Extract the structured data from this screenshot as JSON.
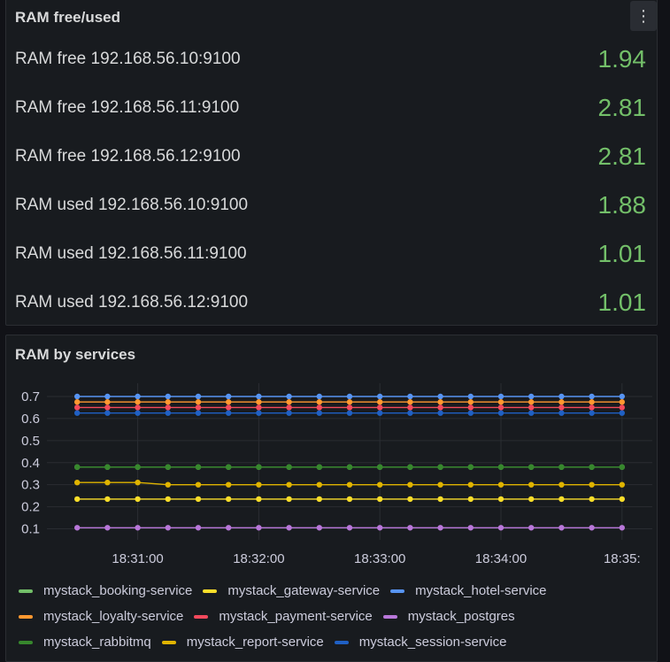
{
  "ram_panel": {
    "title": "RAM free/used",
    "menu_icon": "⋮",
    "value_color": "#73bf69",
    "rows": [
      {
        "label": "RAM free 192.168.56.10:9100",
        "value": "1.94"
      },
      {
        "label": "RAM free 192.168.56.11:9100",
        "value": "2.81"
      },
      {
        "label": "RAM free 192.168.56.12:9100",
        "value": "2.81"
      },
      {
        "label": "RAM used 192.168.56.10:9100",
        "value": "1.88"
      },
      {
        "label": "RAM used 192.168.56.11:9100",
        "value": "1.01"
      },
      {
        "label": "RAM used 192.168.56.12:9100",
        "value": "1.01"
      }
    ]
  },
  "services_panel": {
    "title": "RAM by services",
    "legend": [
      [
        "mystack_booking-service",
        "mystack_gateway-service",
        "mystack_hotel-service"
      ],
      [
        "mystack_loyalty-service",
        "mystack_payment-service",
        "mystack_postgres"
      ],
      [
        "mystack_rabbitmq",
        "mystack_report-service",
        "mystack_session-service"
      ]
    ]
  },
  "chart_data": {
    "type": "line",
    "title": "RAM by services",
    "xlabel": "",
    "ylabel": "",
    "x_tick_labels": [
      "18:31:00",
      "18:32:00",
      "18:33:00",
      "18:34:00",
      "18:35:"
    ],
    "y_tick_labels": [
      "0.1",
      "0.2",
      "0.3",
      "0.4",
      "0.5",
      "0.6",
      "0.7"
    ],
    "xlim": [
      0,
      20
    ],
    "ylim": [
      0.05,
      0.72
    ],
    "x_tick_positions": [
      3,
      7,
      11,
      15,
      19
    ],
    "y_tick_values": [
      0.1,
      0.2,
      0.3,
      0.4,
      0.5,
      0.6,
      0.7
    ],
    "legend_position": "bottom",
    "grid": true,
    "x": [
      1,
      2,
      3,
      4,
      5,
      6,
      7,
      8,
      9,
      10,
      11,
      12,
      13,
      14,
      15,
      16,
      17,
      18,
      19
    ],
    "series": [
      {
        "name": "mystack_booking-service",
        "color": "#73bf69",
        "values": [
          0.38,
          0.38,
          0.38,
          0.38,
          0.38,
          0.38,
          0.38,
          0.38,
          0.38,
          0.38,
          0.38,
          0.38,
          0.38,
          0.38,
          0.38,
          0.38,
          0.38,
          0.38,
          0.38
        ]
      },
      {
        "name": "mystack_gateway-service",
        "color": "#fade2a",
        "values": [
          0.235,
          0.235,
          0.235,
          0.235,
          0.235,
          0.235,
          0.235,
          0.235,
          0.235,
          0.235,
          0.235,
          0.235,
          0.235,
          0.235,
          0.235,
          0.235,
          0.235,
          0.235,
          0.235
        ]
      },
      {
        "name": "mystack_hotel-service",
        "color": "#5794f2",
        "values": [
          0.7,
          0.7,
          0.7,
          0.7,
          0.7,
          0.7,
          0.7,
          0.7,
          0.7,
          0.7,
          0.7,
          0.7,
          0.7,
          0.7,
          0.7,
          0.7,
          0.7,
          0.7,
          0.7
        ]
      },
      {
        "name": "mystack_loyalty-service",
        "color": "#ff9830",
        "values": [
          0.675,
          0.675,
          0.675,
          0.675,
          0.675,
          0.675,
          0.675,
          0.675,
          0.675,
          0.675,
          0.675,
          0.675,
          0.675,
          0.675,
          0.675,
          0.675,
          0.675,
          0.675,
          0.675
        ]
      },
      {
        "name": "mystack_payment-service",
        "color": "#f2495c",
        "values": [
          0.65,
          0.65,
          0.65,
          0.65,
          0.65,
          0.65,
          0.65,
          0.65,
          0.65,
          0.65,
          0.65,
          0.65,
          0.65,
          0.65,
          0.65,
          0.65,
          0.65,
          0.65,
          0.65
        ]
      },
      {
        "name": "mystack_postgres",
        "color": "#b877d9",
        "values": [
          0.105,
          0.105,
          0.105,
          0.105,
          0.105,
          0.105,
          0.105,
          0.105,
          0.105,
          0.105,
          0.105,
          0.105,
          0.105,
          0.105,
          0.105,
          0.105,
          0.105,
          0.105,
          0.105
        ]
      },
      {
        "name": "mystack_rabbitmq",
        "color": "#37872d",
        "values": [
          0.38,
          0.38,
          0.38,
          0.38,
          0.38,
          0.38,
          0.38,
          0.38,
          0.38,
          0.38,
          0.38,
          0.38,
          0.38,
          0.38,
          0.38,
          0.38,
          0.38,
          0.38,
          0.38
        ]
      },
      {
        "name": "mystack_report-service",
        "color": "#e0b400",
        "values": [
          0.31,
          0.31,
          0.31,
          0.3,
          0.3,
          0.3,
          0.3,
          0.3,
          0.3,
          0.3,
          0.3,
          0.3,
          0.3,
          0.3,
          0.3,
          0.3,
          0.3,
          0.3,
          0.3
        ]
      },
      {
        "name": "mystack_session-service",
        "color": "#1f60c4",
        "values": [
          0.625,
          0.625,
          0.625,
          0.625,
          0.625,
          0.625,
          0.625,
          0.625,
          0.625,
          0.625,
          0.625,
          0.625,
          0.625,
          0.625,
          0.625,
          0.625,
          0.625,
          0.625,
          0.625
        ]
      }
    ]
  }
}
